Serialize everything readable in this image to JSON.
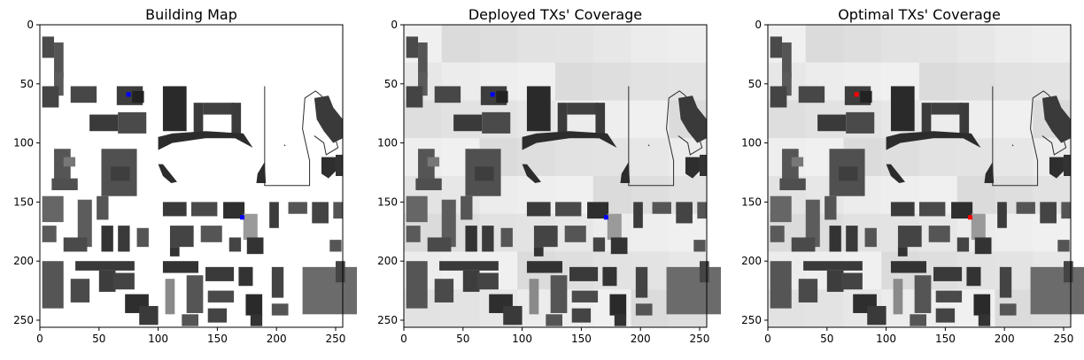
{
  "figure": {
    "panels": [
      {
        "id": "building-map",
        "title": "Building Map",
        "coverage": false,
        "tx_color": "#0000ff"
      },
      {
        "id": "deployed",
        "title": "Deployed TXs' Coverage",
        "coverage": true,
        "tx_color": "#0000ff"
      },
      {
        "id": "optimal",
        "title": "Optimal TXs' Coverage",
        "coverage": true,
        "tx_color": "#ff0000"
      }
    ]
  },
  "chart_data": [
    {
      "type": "heatmap",
      "title": "Building Map",
      "xlim": [
        0,
        256
      ],
      "ylim": [
        256,
        0
      ],
      "xticks": [
        0,
        50,
        100,
        150,
        200,
        250
      ],
      "yticks": [
        0,
        50,
        100,
        150,
        200,
        250
      ],
      "colormap": "gray",
      "markers": [
        {
          "x": 75,
          "y": 59,
          "color": "#0000ff"
        },
        {
          "x": 171,
          "y": 163,
          "color": "#0000ff"
        }
      ]
    },
    {
      "type": "heatmap",
      "title": "Deployed TXs' Coverage",
      "xlim": [
        0,
        256
      ],
      "ylim": [
        256,
        0
      ],
      "xticks": [
        0,
        50,
        100,
        150,
        200,
        250
      ],
      "yticks": [
        0,
        50,
        100,
        150,
        200,
        250
      ],
      "colormap": "gray",
      "markers": [
        {
          "x": 75,
          "y": 59,
          "color": "#0000ff"
        },
        {
          "x": 171,
          "y": 163,
          "color": "#0000ff"
        }
      ]
    },
    {
      "type": "heatmap",
      "title": "Optimal TXs' Coverage",
      "xlim": [
        0,
        256
      ],
      "ylim": [
        256,
        0
      ],
      "xticks": [
        0,
        50,
        100,
        150,
        200,
        250
      ],
      "yticks": [
        0,
        50,
        100,
        150,
        200,
        250
      ],
      "colormap": "gray",
      "markers": [
        {
          "x": 75,
          "y": 59,
          "color": "#ff0000"
        },
        {
          "x": 171,
          "y": 163,
          "color": "#ff0000"
        }
      ]
    }
  ]
}
